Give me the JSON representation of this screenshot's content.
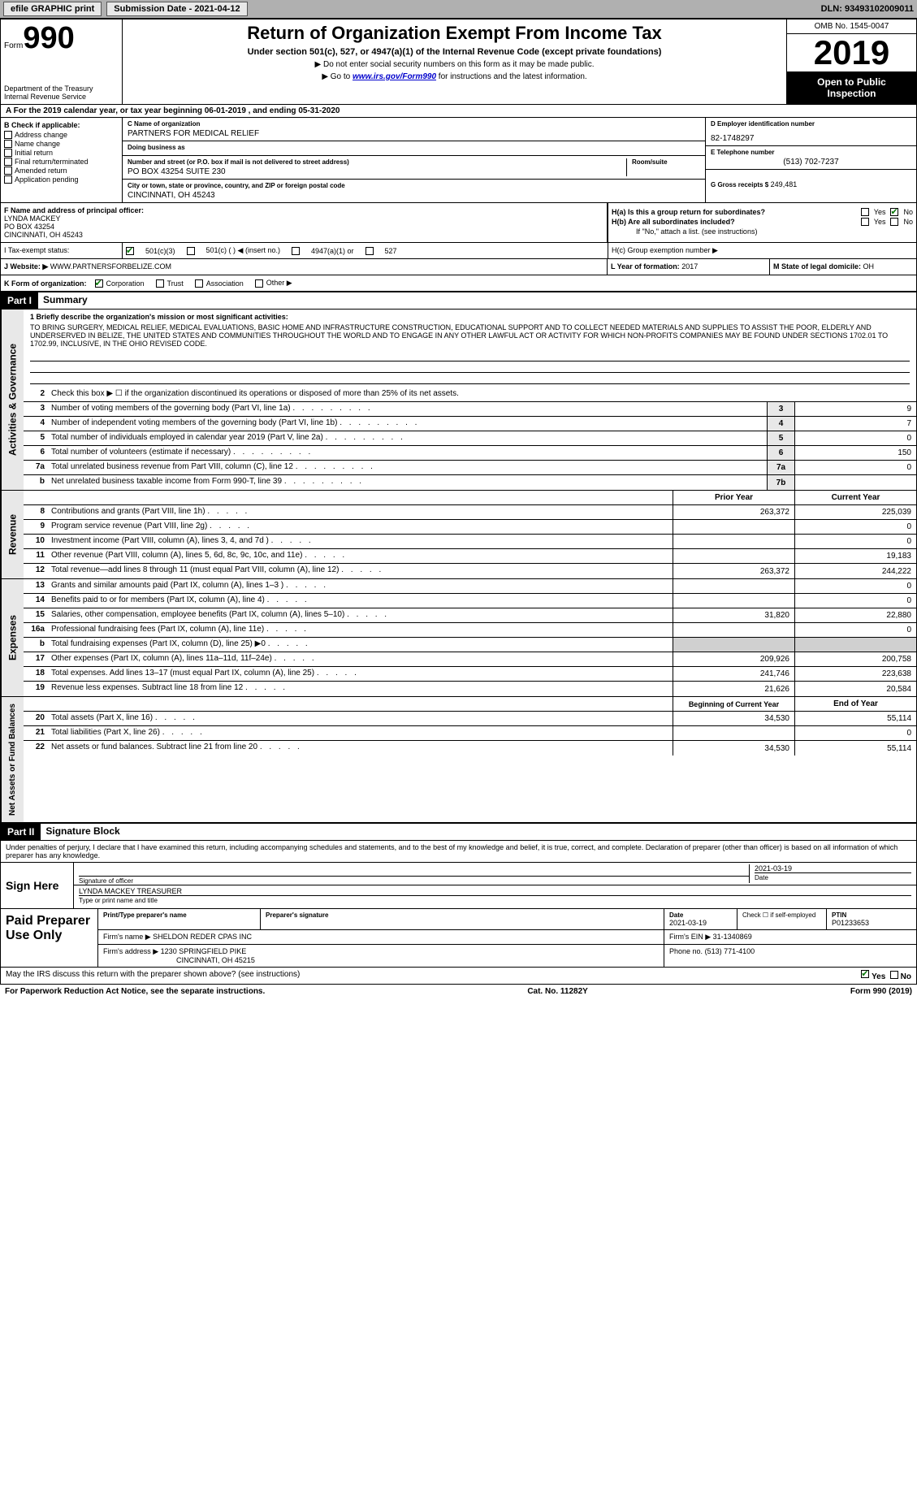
{
  "topbar": {
    "efile": "efile GRAPHIC print",
    "submission": "Submission Date - 2021-04-12",
    "dln": "DLN: 93493102009011"
  },
  "header": {
    "form_word": "Form",
    "form_num": "990",
    "dept": "Department of the Treasury\nInternal Revenue Service",
    "title": "Return of Organization Exempt From Income Tax",
    "subtitle": "Under section 501(c), 527, or 4947(a)(1) of the Internal Revenue Code (except private foundations)",
    "instr1": "▶ Do not enter social security numbers on this form as it may be made public.",
    "instr2_pre": "▶ Go to ",
    "instr2_link": "www.irs.gov/Form990",
    "instr2_post": " for instructions and the latest information.",
    "omb": "OMB No. 1545-0047",
    "year": "2019",
    "inspection": "Open to Public Inspection"
  },
  "row_a": "A For the 2019 calendar year, or tax year beginning 06-01-2019    , and ending 05-31-2020",
  "col_b": {
    "hdr": "B Check if applicable:",
    "items": [
      "Address change",
      "Name change",
      "Initial return",
      "Final return/terminated",
      "Amended return",
      "Application pending"
    ]
  },
  "org": {
    "c_label": "C Name of organization",
    "name": "PARTNERS FOR MEDICAL RELIEF",
    "dba_label": "Doing business as",
    "dba": "",
    "addr_label": "Number and street (or P.O. box if mail is not delivered to street address)",
    "addr": "PO BOX 43254 SUITE 230",
    "room_label": "Room/suite",
    "city_label": "City or town, state or province, country, and ZIP or foreign postal code",
    "city": "CINCINNATI, OH  45243"
  },
  "col_d": {
    "d_label": "D Employer identification number",
    "ein": "82-1748297",
    "e_label": "E Telephone number",
    "phone": "(513) 702-7237",
    "g_label": "G Gross receipts $",
    "gross": "249,481"
  },
  "officer": {
    "f_label": "F Name and address of principal officer:",
    "name": "LYNDA MACKEY",
    "addr1": "PO BOX 43254",
    "addr2": "CINCINNATI, OH  45243"
  },
  "h": {
    "a_label": "H(a)  Is this a group return for subordinates?",
    "b_label": "H(b)  Are all subordinates included?",
    "b_note": "If \"No,\" attach a list. (see instructions)",
    "c_label": "H(c)  Group exemption number ▶",
    "yes": "Yes",
    "no": "No"
  },
  "tax_status": {
    "i_label": "I   Tax-exempt status:",
    "opt1": "501(c)(3)",
    "opt2": "501(c) (   ) ◀ (insert no.)",
    "opt3": "4947(a)(1) or",
    "opt4": "527"
  },
  "website": {
    "j_label": "J   Website: ▶",
    "url": "WWW.PARTNERSFORBELIZE.COM"
  },
  "k": {
    "label": "K Form of organization:",
    "opts": [
      "Corporation",
      "Trust",
      "Association",
      "Other ▶"
    ]
  },
  "l": {
    "label": "L Year of formation:",
    "val": "2017"
  },
  "m": {
    "label": "M State of legal domicile:",
    "val": "OH"
  },
  "part1": {
    "hdr": "Part I",
    "title": "Summary",
    "sidebar1": "Activities & Governance",
    "sidebar2": "Revenue",
    "sidebar3": "Expenses",
    "sidebar4": "Net Assets or Fund Balances",
    "line1_label": "1  Briefly describe the organization's mission or most significant activities:",
    "mission": "TO BRING SURGERY, MEDICAL RELIEF, MEDICAL EVALUATIONS, BASIC HOME AND INFRASTRUCTURE CONSTRUCTION, EDUCATIONAL SUPPORT AND TO COLLECT NEEDED MATERIALS AND SUPPLIES TO ASSIST THE POOR, ELDERLY AND UNDERSERVED IN BELIZE, THE UNITED STATES AND COMMUNITIES THROUGHOUT THE WORLD AND TO ENGAGE IN ANY OTHER LAWFUL ACT OR ACTIVITY FOR WHICH NON-PROFITS COMPANIES MAY BE FOUND UNDER SECTIONS 1702.01 TO 1702.99, INCLUSIVE, IN THE OHIO REVISED CODE.",
    "line2": "Check this box ▶ ☐  if the organization discontinued its operations or disposed of more than 25% of its net assets.",
    "lines": [
      {
        "n": "3",
        "t": "Number of voting members of the governing body (Part VI, line 1a)",
        "box": "3",
        "v": "9"
      },
      {
        "n": "4",
        "t": "Number of independent voting members of the governing body (Part VI, line 1b)",
        "box": "4",
        "v": "7"
      },
      {
        "n": "5",
        "t": "Total number of individuals employed in calendar year 2019 (Part V, line 2a)",
        "box": "5",
        "v": "0"
      },
      {
        "n": "6",
        "t": "Total number of volunteers (estimate if necessary)",
        "box": "6",
        "v": "150"
      },
      {
        "n": "7a",
        "t": "Total unrelated business revenue from Part VIII, column (C), line 12",
        "box": "7a",
        "v": "0"
      },
      {
        "n": "b",
        "t": "Net unrelated business taxable income from Form 990-T, line 39",
        "box": "7b",
        "v": ""
      }
    ],
    "col_hdr_prior": "Prior Year",
    "col_hdr_current": "Current Year",
    "rev_lines": [
      {
        "n": "8",
        "t": "Contributions and grants (Part VIII, line 1h)",
        "p": "263,372",
        "c": "225,039"
      },
      {
        "n": "9",
        "t": "Program service revenue (Part VIII, line 2g)",
        "p": "",
        "c": "0"
      },
      {
        "n": "10",
        "t": "Investment income (Part VIII, column (A), lines 3, 4, and 7d )",
        "p": "",
        "c": "0"
      },
      {
        "n": "11",
        "t": "Other revenue (Part VIII, column (A), lines 5, 6d, 8c, 9c, 10c, and 11e)",
        "p": "",
        "c": "19,183"
      },
      {
        "n": "12",
        "t": "Total revenue—add lines 8 through 11 (must equal Part VIII, column (A), line 12)",
        "p": "263,372",
        "c": "244,222"
      }
    ],
    "exp_lines": [
      {
        "n": "13",
        "t": "Grants and similar amounts paid (Part IX, column (A), lines 1–3 )",
        "p": "",
        "c": "0"
      },
      {
        "n": "14",
        "t": "Benefits paid to or for members (Part IX, column (A), line 4)",
        "p": "",
        "c": "0"
      },
      {
        "n": "15",
        "t": "Salaries, other compensation, employee benefits (Part IX, column (A), lines 5–10)",
        "p": "31,820",
        "c": "22,880"
      },
      {
        "n": "16a",
        "t": "Professional fundraising fees (Part IX, column (A), line 11e)",
        "p": "",
        "c": "0"
      },
      {
        "n": "b",
        "t": "Total fundraising expenses (Part IX, column (D), line 25) ▶0",
        "p": "",
        "c": "",
        "gray": true
      },
      {
        "n": "17",
        "t": "Other expenses (Part IX, column (A), lines 11a–11d, 11f–24e)",
        "p": "209,926",
        "c": "200,758"
      },
      {
        "n": "18",
        "t": "Total expenses. Add lines 13–17 (must equal Part IX, column (A), line 25)",
        "p": "241,746",
        "c": "223,638"
      },
      {
        "n": "19",
        "t": "Revenue less expenses. Subtract line 18 from line 12",
        "p": "21,626",
        "c": "20,584"
      }
    ],
    "col_hdr_begin": "Beginning of Current Year",
    "col_hdr_end": "End of Year",
    "net_lines": [
      {
        "n": "20",
        "t": "Total assets (Part X, line 16)",
        "p": "34,530",
        "c": "55,114"
      },
      {
        "n": "21",
        "t": "Total liabilities (Part X, line 26)",
        "p": "",
        "c": "0"
      },
      {
        "n": "22",
        "t": "Net assets or fund balances. Subtract line 21 from line 20",
        "p": "34,530",
        "c": "55,114"
      }
    ]
  },
  "part2": {
    "hdr": "Part II",
    "title": "Signature Block",
    "decl": "Under penalties of perjury, I declare that I have examined this return, including accompanying schedules and statements, and to the best of my knowledge and belief, it is true, correct, and complete. Declaration of preparer (other than officer) is based on all information of which preparer has any knowledge.",
    "sign_here": "Sign Here",
    "sig_officer": "Signature of officer",
    "sig_date": "2021-03-19",
    "date_label": "Date",
    "officer_name": "LYNDA MACKEY  TREASURER",
    "name_title": "Type or print name and title",
    "paid": "Paid Preparer Use Only",
    "prep_name_label": "Print/Type preparer's name",
    "prep_sig_label": "Preparer's signature",
    "prep_date_label": "Date",
    "prep_date": "2021-03-19",
    "check_if": "Check ☐ if self-employed",
    "ptin_label": "PTIN",
    "ptin": "P01233653",
    "firm_name_label": "Firm's name    ▶",
    "firm_name": "SHELDON REDER CPAS INC",
    "firm_ein_label": "Firm's EIN ▶",
    "firm_ein": "31-1340869",
    "firm_addr_label": "Firm's address ▶",
    "firm_addr": "1230 SPRINGFIELD PIKE",
    "firm_city": "CINCINNATI, OH  45215",
    "phone_label": "Phone no.",
    "phone": "(513) 771-4100"
  },
  "footer": {
    "discuss": "May the IRS discuss this return with the preparer shown above? (see instructions)",
    "yes": "Yes",
    "no": "No",
    "paperwork": "For Paperwork Reduction Act Notice, see the separate instructions.",
    "cat": "Cat. No. 11282Y",
    "form": "Form 990 (2019)"
  }
}
